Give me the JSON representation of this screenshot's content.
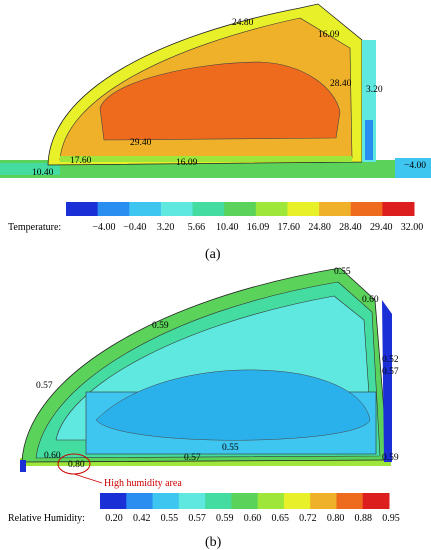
{
  "panel_a": {
    "caption": "(a)",
    "colorbar_title": "Temperature:",
    "colorbar_ticks": [
      "−4.00",
      "−0.40",
      "3.20",
      "5.66",
      "10.40",
      "16.09",
      "17.60",
      "24.80",
      "28.40",
      "29.40",
      "32.00"
    ],
    "colorbar_colors": [
      "#1a2fd6",
      "#2a8ef0",
      "#3fc6f0",
      "#5fe8e0",
      "#44dca0",
      "#5bd35b",
      "#9ee63a",
      "#e8f02a",
      "#f0b12a",
      "#ee6a1c",
      "#dd1e1e"
    ],
    "contour_labels": [
      "24.80",
      "16.09",
      "28.40",
      "3.20",
      "29.40",
      "17.60",
      "16.09",
      "10.40",
      "−4.00"
    ]
  },
  "panel_b": {
    "caption": "(b)",
    "colorbar_title": "Relative Humidity:",
    "colorbar_ticks": [
      "0.20",
      "0.42",
      "0.55",
      "0.57",
      "0.59",
      "0.60",
      "0.65",
      "0.72",
      "0.80",
      "0.88",
      "0.95"
    ],
    "colorbar_colors": [
      "#1a2fd6",
      "#2a8ef0",
      "#3fc6f0",
      "#5fe8e0",
      "#44dca0",
      "#5bd35b",
      "#9ee63a",
      "#e8f02a",
      "#f0b12a",
      "#ee6a1c",
      "#dd1e1e"
    ],
    "contour_labels": [
      "0.55",
      "0.60",
      "0.59",
      "0.52",
      "0.57",
      "0.57",
      "0.55",
      "0.60",
      "0.57",
      "0.59",
      "0.80"
    ],
    "annotation": "High humidity area"
  }
}
